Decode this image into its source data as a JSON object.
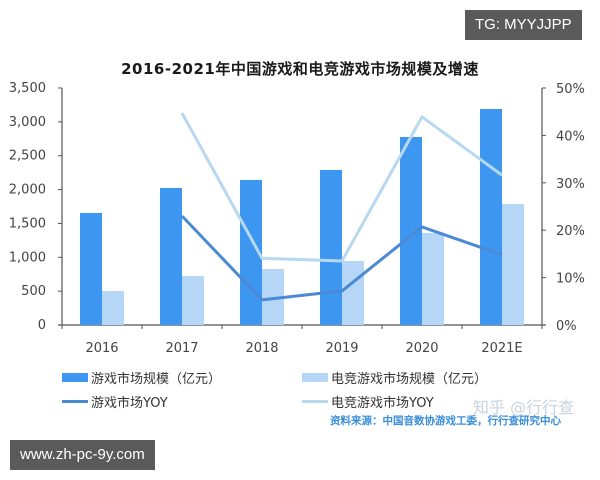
{
  "title": "2016-2021年中国游戏和电竞游戏市场规模及增速",
  "chart_data": {
    "type": "bar+line",
    "title": "2016-2021年中国游戏和电竞游戏市场规模及增速",
    "categories": [
      "2016",
      "2017",
      "2018",
      "2019",
      "2020",
      "2021E"
    ],
    "left_axis": {
      "label": "亿元",
      "ylim": [
        0,
        3500
      ],
      "ticks": [
        "0",
        "500",
        "1,000",
        "1,500",
        "2,000",
        "2,500",
        "3,000",
        "3,500"
      ]
    },
    "right_axis": {
      "label": "YOY",
      "ylim": [
        0,
        50
      ],
      "ticks": [
        "0%",
        "10%",
        "20%",
        "30%",
        "40%",
        "50%"
      ]
    },
    "series": [
      {
        "name": "游戏市场规模（亿元）",
        "type": "bar",
        "axis": "left",
        "color": "#3d97f0",
        "values": [
          1655,
          2024,
          2142,
          2290,
          2777,
          3190
        ]
      },
      {
        "name": "电竞游戏市场规模（亿元）",
        "type": "bar",
        "axis": "left",
        "color": "#b5d6f7",
        "values": [
          502,
          724,
          827,
          945,
          1359,
          1787
        ]
      },
      {
        "name": "游戏市场YOY",
        "type": "line",
        "axis": "right",
        "color": "#4a8ad4",
        "values": [
          null,
          23.0,
          5.3,
          7.2,
          20.7,
          14.8
        ]
      },
      {
        "name": "电竞游戏市场YOY",
        "type": "line",
        "axis": "right",
        "color": "#b8d8f0",
        "values": [
          null,
          44.7,
          14.1,
          13.5,
          43.9,
          31.6
        ]
      }
    ],
    "grid": false,
    "legend_position": "bottom"
  },
  "legend": [
    {
      "label": "游戏市场规模（亿元）",
      "kind": "bar",
      "color": "#3d97f0"
    },
    {
      "label": "电竞游戏市场规模（亿元）",
      "kind": "bar",
      "color": "#b5d6f7"
    },
    {
      "label": "游戏市场YOY",
      "kind": "line",
      "color": "#4a8ad4"
    },
    {
      "label": "电竞游戏市场YOY",
      "kind": "line",
      "color": "#b8d8f0"
    }
  ],
  "source": "资料来源：中国音数协游戏工委，行行查研究中心",
  "watermark": "知乎 @行行查",
  "badges": {
    "tg": "TG: MYYJJPP",
    "url": "www.zh-pc-9y.com"
  }
}
